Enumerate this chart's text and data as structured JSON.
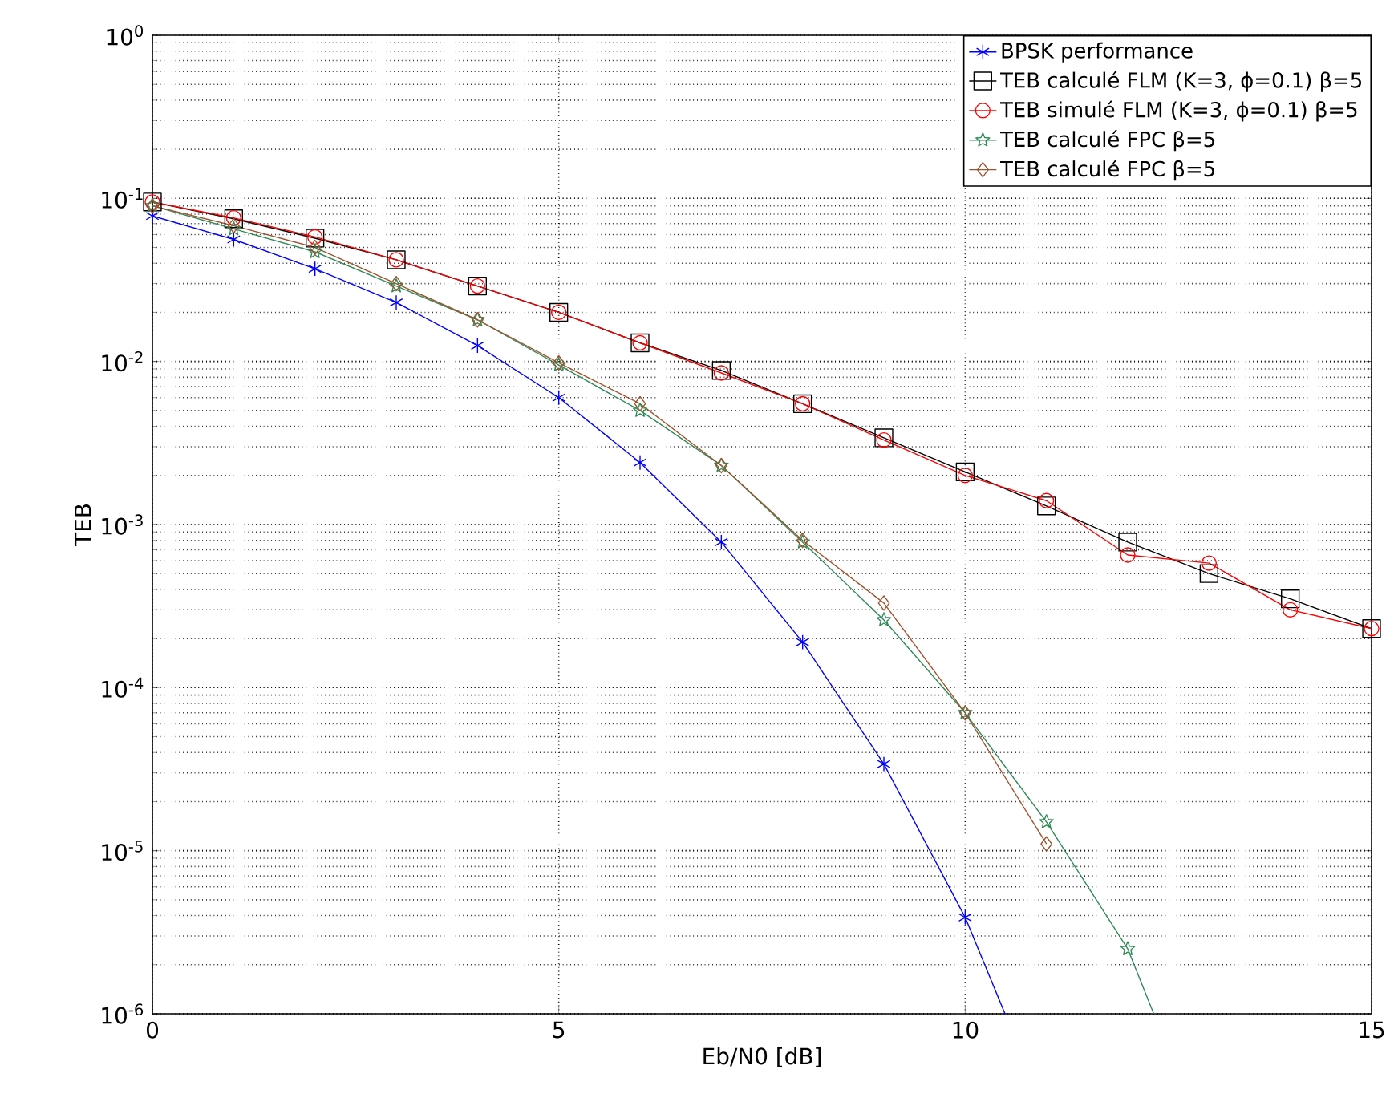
{
  "chart_data": {
    "type": "line",
    "xlabel": "Eb/N0 [dB]",
    "ylabel": "TEB",
    "log": "y",
    "grid": true,
    "legend": "top right",
    "line_style": "solid",
    "xlim": [
      0,
      15
    ],
    "ylim": [
      1e-06,
      1
    ],
    "xticks": [
      0,
      5,
      10,
      15
    ],
    "yticks": [
      {
        "value": 1e-06,
        "label": "10$^{-6}$"
      },
      {
        "value": 1e-05,
        "label": "10$^{-5}$"
      },
      {
        "value": 0.0001,
        "label": "10$^{-4}$"
      },
      {
        "value": 0.001,
        "label": "10$^{-3}$"
      },
      {
        "value": 0.01,
        "label": "10$^{-2}$"
      },
      {
        "value": 0.1,
        "label": "10$^{-1}$"
      },
      {
        "value": 1,
        "label": "10$^{0}$"
      }
    ],
    "series": [
      {
        "name": "BPSK performance",
        "color": "#0000ff",
        "marker": "cross",
        "x": [
          0,
          1,
          2,
          3,
          4,
          5,
          6,
          7,
          8,
          9,
          10,
          10.49
        ],
        "values": [
          0.078,
          0.056,
          0.037,
          0.023,
          0.0125,
          0.006,
          0.0024,
          0.00078,
          0.00019,
          3.4e-05,
          3.9e-06,
          1e-06
        ]
      },
      {
        "name": "TEB calculé FLM (K=3, ϕ=0.1) β=5",
        "color": "#000000",
        "marker": "square",
        "x": [
          0,
          1,
          2,
          3,
          4,
          5,
          6,
          7,
          8,
          9,
          10,
          11,
          12,
          13,
          14,
          15
        ],
        "values": [
          0.095,
          0.075,
          0.057,
          0.042,
          0.029,
          0.02,
          0.013,
          0.0088,
          0.0055,
          0.0034,
          0.0021,
          0.0013,
          0.00078,
          0.0005,
          0.00035,
          0.00023
        ]
      },
      {
        "name": "TEB simulé FLM (K=3, ϕ=0.1) β=5",
        "color": "#ff0000",
        "marker": "circle",
        "x": [
          0,
          1,
          2,
          3,
          4,
          5,
          6,
          7,
          8,
          9,
          10,
          11,
          12,
          13,
          14,
          15
        ],
        "values": [
          0.095,
          0.076,
          0.058,
          0.042,
          0.029,
          0.02,
          0.013,
          0.0085,
          0.0055,
          0.0033,
          0.002,
          0.0014,
          0.00065,
          0.00058,
          0.0003,
          0.00023
        ]
      },
      {
        "name": "TEB calculé FPC β=5",
        "color": "#2e8b57",
        "marker": "star",
        "x": [
          0,
          1,
          2,
          3,
          4,
          5,
          6,
          7,
          8,
          9,
          10,
          11,
          12,
          12.32
        ],
        "values": [
          0.09,
          0.065,
          0.047,
          0.029,
          0.018,
          0.0095,
          0.005,
          0.0023,
          0.00078,
          0.00026,
          7e-05,
          1.5e-05,
          2.5e-06,
          1e-06
        ]
      },
      {
        "name": "TEB calculé FPC β=5",
        "color": "#a0522d",
        "marker": "diamond",
        "x": [
          0,
          1,
          2,
          3,
          4,
          5,
          6,
          7,
          8,
          9,
          10,
          11
        ],
        "values": [
          0.09,
          0.068,
          0.05,
          0.03,
          0.018,
          0.0098,
          0.0055,
          0.0023,
          0.0008,
          0.00033,
          7e-05,
          1.1e-05
        ]
      }
    ]
  }
}
